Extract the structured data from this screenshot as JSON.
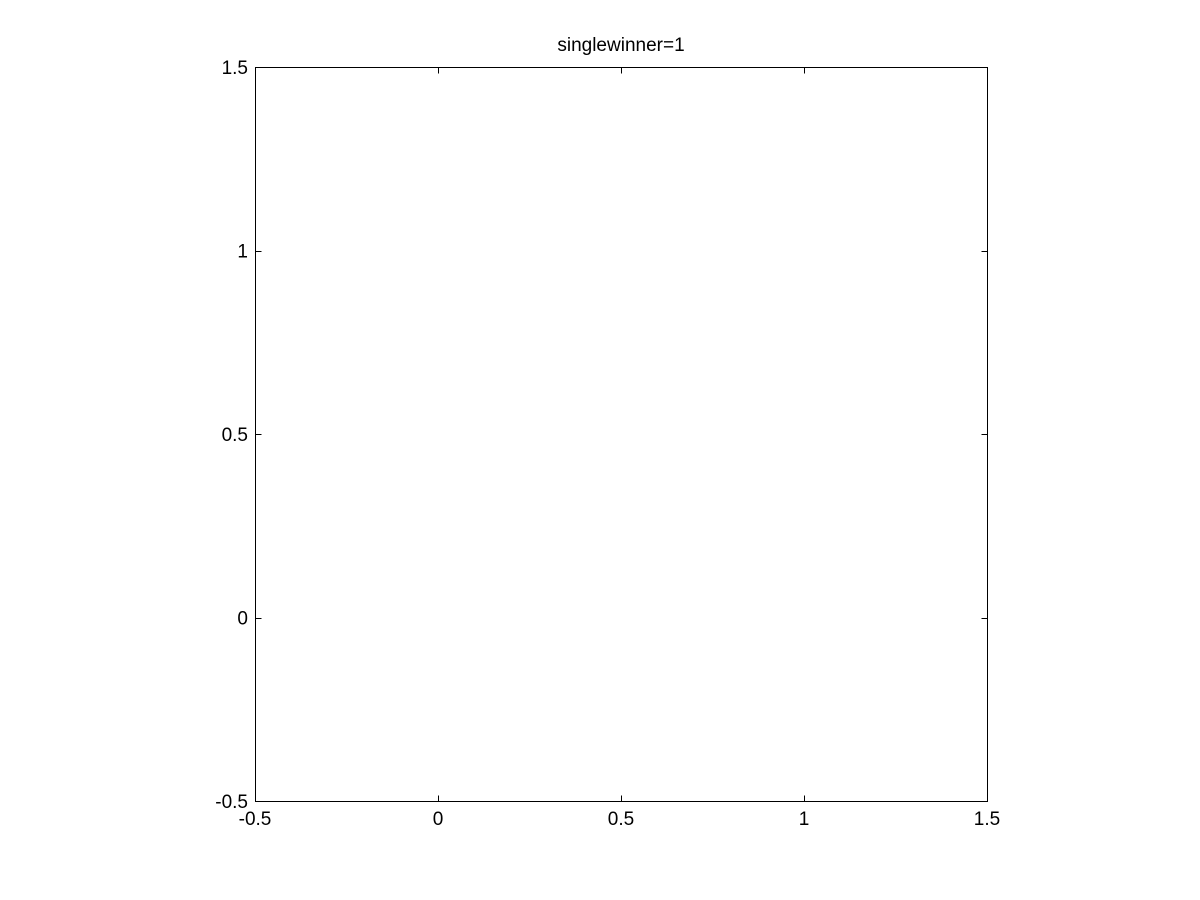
{
  "chart_data": {
    "type": "scatter",
    "title": "singlewinner=1",
    "xlabel": "",
    "ylabel": "",
    "xlim": [
      -0.5,
      1.5
    ],
    "ylim": [
      -0.5,
      1.5
    ],
    "x_ticks": [
      -0.5,
      0,
      0.5,
      1,
      1.5
    ],
    "y_ticks": [
      -0.5,
      0,
      0.5,
      1,
      1.5
    ],
    "x_tick_labels": [
      "-0.5",
      "0",
      "0.5",
      "1",
      "1.5"
    ],
    "y_tick_labels": [
      "-0.5",
      "0",
      "0.5",
      "1",
      "1.5"
    ],
    "series": [],
    "grid": false,
    "box": true
  }
}
